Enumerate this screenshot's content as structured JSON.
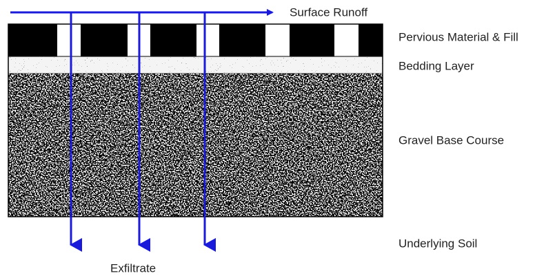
{
  "flow_labels": {
    "top": "Surface Runoff",
    "bottom": "Exfiltrate"
  },
  "layers": [
    {
      "label": "Pervious Material & Fill"
    },
    {
      "label": "Bedding Layer"
    },
    {
      "label": "Gravel Base Course"
    },
    {
      "label": "Underlying Soil"
    }
  ]
}
